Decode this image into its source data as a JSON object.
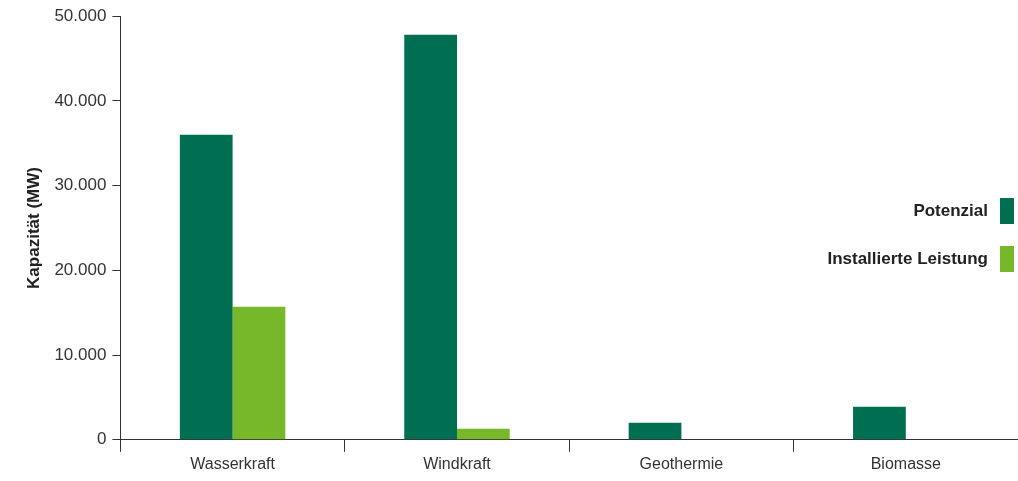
{
  "chart_data": {
    "type": "bar",
    "ylabel": "Kapazität (MW)",
    "categories": [
      "Wasserkraft",
      "Windkraft",
      "Geothermie",
      "Biomasse"
    ],
    "series": [
      {
        "name": "Potenzial",
        "color": "#006e50",
        "values": [
          36000,
          47800,
          2000,
          3900
        ]
      },
      {
        "name": "Installierte Leistung",
        "color": "#76b82a",
        "values": [
          15700,
          1300,
          null,
          null
        ]
      }
    ],
    "ylim": [
      0,
      50000
    ],
    "yticks": [
      {
        "value": 0,
        "label": "0"
      },
      {
        "value": 10000,
        "label": "10.000"
      },
      {
        "value": 20000,
        "label": "20.000"
      },
      {
        "value": 30000,
        "label": "30.000"
      },
      {
        "value": 40000,
        "label": "40.000"
      },
      {
        "value": 50000,
        "label": "50.000"
      }
    ],
    "grid": false,
    "legend": "right"
  }
}
